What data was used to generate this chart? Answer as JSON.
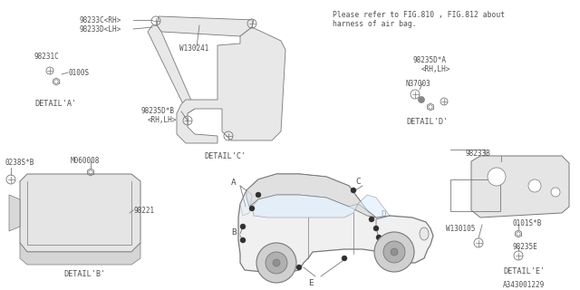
{
  "bg_color": "#ffffff",
  "line_color": "#787878",
  "text_color": "#505050",
  "fig_width": 6.4,
  "fig_height": 3.2,
  "dpi": 100,
  "note_text1": "Please refer to FIG.810 , FIG.812 about",
  "note_text2": "harness of air bag.",
  "diagram_id": "A343001229",
  "font_size": 5.8
}
